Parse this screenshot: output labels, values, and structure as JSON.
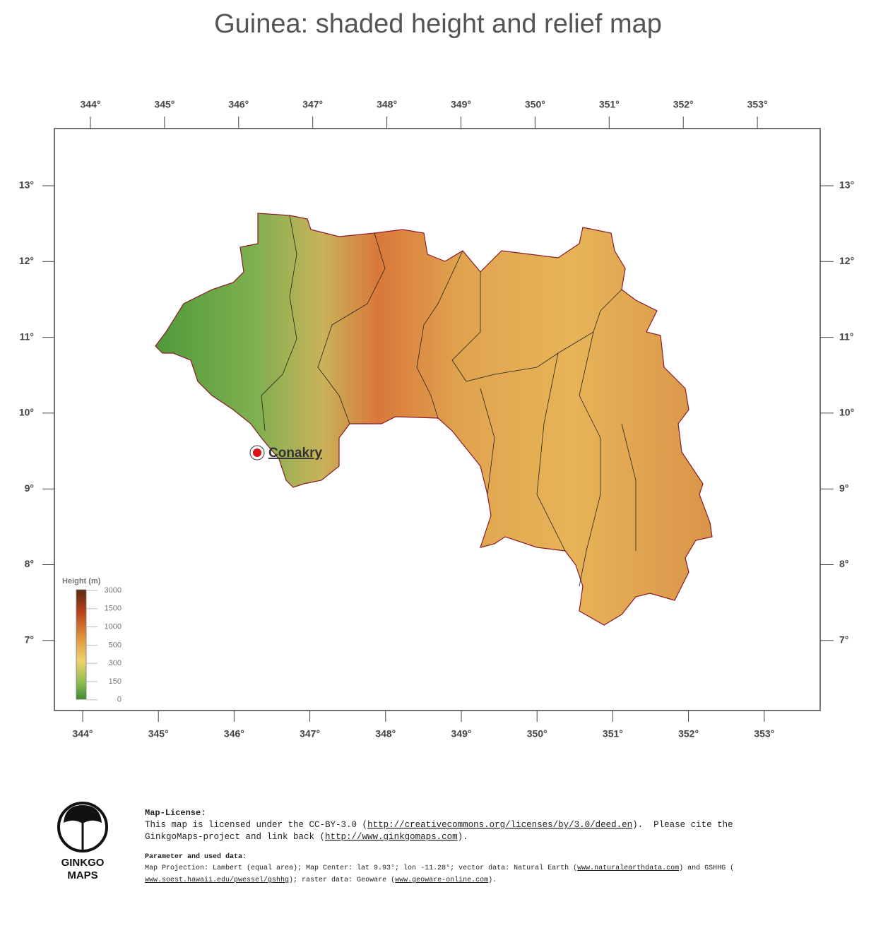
{
  "title": "Guinea: shaded height and relief map",
  "map": {
    "top_ticks": [
      "344°",
      "345°",
      "346°",
      "347°",
      "348°",
      "349°",
      "350°",
      "351°",
      "352°",
      "353°"
    ],
    "bottom_ticks": [
      "344°",
      "345°",
      "346°",
      "347°",
      "348°",
      "349°",
      "350°",
      "351°",
      "352°",
      "353°"
    ],
    "left_ticks": [
      "13°",
      "12°",
      "11°",
      "10°",
      "9°",
      "8°",
      "7°"
    ],
    "right_ticks": [
      "13°",
      "12°",
      "11°",
      "10°",
      "9°",
      "8°",
      "7°"
    ],
    "city": "Conakry"
  },
  "legend": {
    "title": "Height (m)",
    "labels": [
      3000,
      1500,
      1000,
      500,
      300,
      150,
      0
    ]
  },
  "logo": {
    "line1": "GINKGO",
    "line2": "MAPS"
  },
  "license": {
    "heading": "Map-License:",
    "line1_a": "This map is licensed under the CC-BY-3.0 (",
    "line1_link": "http://creativecommons.org/licenses/by/3.0/deed.en",
    "line1_b": ").  Please cite the",
    "line2_a": "GinkgoMaps-project and link back (",
    "line2_link": "http://www.ginkgomaps.com",
    "line2_b": ")."
  },
  "parameters": {
    "heading": "Parameter and used data:",
    "line1_a": "Map Projection: Lambert (equal area); Map Center: lat 9.93°; lon -11.28°; vector data: Natural Earth (",
    "line1_link": "www.naturalearthdata.com",
    "line1_b": ") and GSHHG (",
    "line2_link": "www.soest.hawaii.edu/pwessel/gshhg",
    "line2_a": "); raster data: Geoware (",
    "line2_link2": "www.geoware-online.com",
    "line2_b": ")."
  }
}
